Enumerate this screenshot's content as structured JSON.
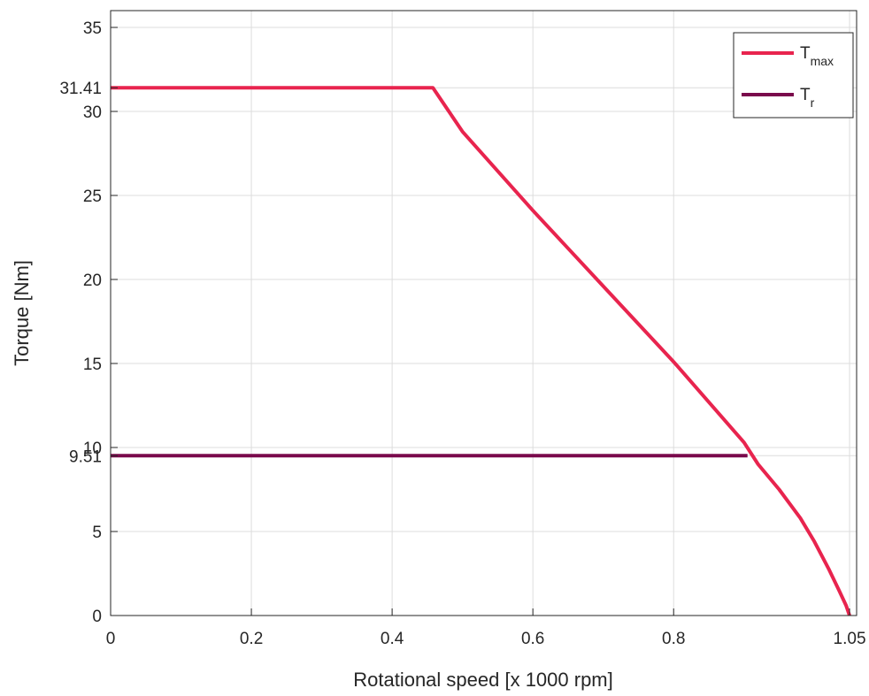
{
  "colors": {
    "tmax": "#e8244e",
    "tr": "#7a0a4c",
    "grid": "#dcdcdc",
    "axis": "#262626"
  },
  "chart_data": {
    "type": "line",
    "title": "",
    "xlabel": "Rotational speed [x 1000 rpm]",
    "ylabel": "Torque [Nm]",
    "xlim": [
      0,
      1.06
    ],
    "ylim": [
      0,
      36
    ],
    "grid": true,
    "legend_position": "top-right",
    "x_ticks": [
      {
        "value": 0,
        "label": "0"
      },
      {
        "value": 0.2,
        "label": "0.2"
      },
      {
        "value": 0.4,
        "label": "0.4"
      },
      {
        "value": 0.6,
        "label": "0.6"
      },
      {
        "value": 0.8,
        "label": "0.8"
      },
      {
        "value": 1.05,
        "label": "1.05"
      }
    ],
    "y_ticks": [
      {
        "value": 0,
        "label": "0"
      },
      {
        "value": 5,
        "label": "5"
      },
      {
        "value": 9.51,
        "label": "9.51"
      },
      {
        "value": 10,
        "label": "10"
      },
      {
        "value": 15,
        "label": "15"
      },
      {
        "value": 20,
        "label": "20"
      },
      {
        "value": 25,
        "label": "25"
      },
      {
        "value": 30,
        "label": "30"
      },
      {
        "value": 31.41,
        "label": "31.41"
      },
      {
        "value": 35,
        "label": "35"
      }
    ],
    "series": [
      {
        "name": "T",
        "subscript": "max",
        "color": "#e8244e",
        "x": [
          0,
          0.458,
          0.5,
          0.6,
          0.7,
          0.8,
          0.9,
          0.92,
          0.95,
          0.98,
          1.0,
          1.02,
          1.035,
          1.045,
          1.05
        ],
        "y": [
          31.41,
          31.41,
          28.8,
          24.1,
          19.6,
          15.1,
          10.3,
          9.0,
          7.5,
          5.8,
          4.4,
          2.8,
          1.5,
          0.6,
          0
        ]
      },
      {
        "name": "T",
        "subscript": "r",
        "color": "#7a0a4c",
        "x": [
          0,
          0.905
        ],
        "y": [
          9.51,
          9.51
        ]
      }
    ]
  }
}
